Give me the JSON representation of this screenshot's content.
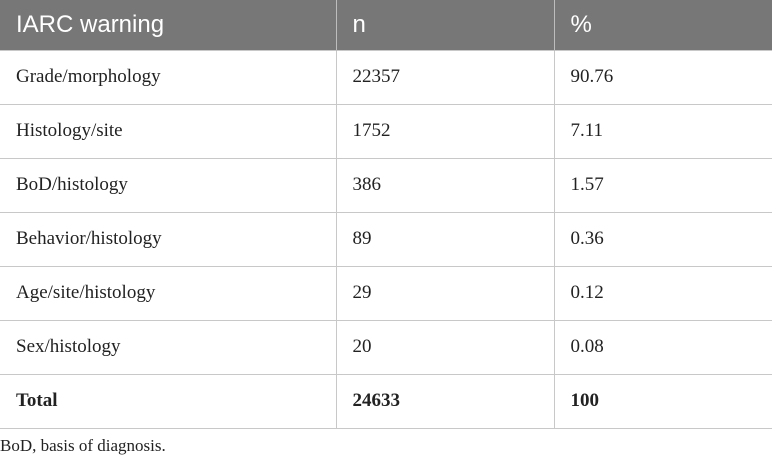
{
  "table": {
    "headers": [
      "IARC warning",
      "n",
      "%"
    ],
    "rows": [
      [
        "Grade/morphology",
        "22357",
        "90.76"
      ],
      [
        "Histology/site",
        "1752",
        "7.11"
      ],
      [
        "BoD/histology",
        "386",
        "1.57"
      ],
      [
        "Behavior/histology",
        "89",
        "0.36"
      ],
      [
        "Age/site/histology",
        "29",
        "0.12"
      ],
      [
        "Sex/histology",
        "20",
        "0.08"
      ],
      [
        "Total",
        "24633",
        "100"
      ]
    ]
  },
  "footnote": "BoD, basis of diagnosis.",
  "colors": {
    "header_bg": "#777777",
    "header_text": "#ffffff",
    "grid": "#c8c8c8"
  }
}
